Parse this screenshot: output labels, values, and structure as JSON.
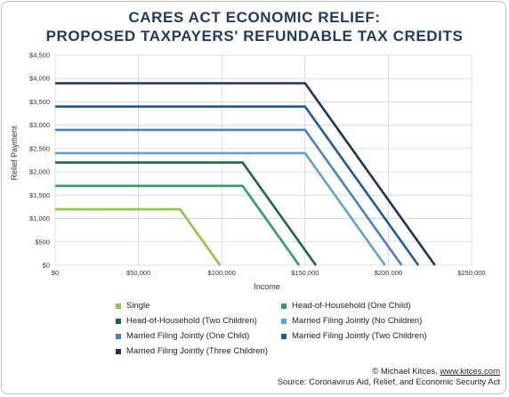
{
  "title_line1": "CARES ACT ECONOMIC RELIEF:",
  "title_line2": "PROPOSED TAXPAYERS' REFUNDABLE TAX CREDITS",
  "footer": {
    "credit_prefix": "© Michael Kitces, ",
    "credit_link": "www.kitces.com",
    "source": "Source: Coronavirus Aid, Relief, and Economic Security Act"
  },
  "chart_data": {
    "type": "line",
    "xlabel": "Income",
    "ylabel": "Relief Payment",
    "xlim": [
      0,
      250000
    ],
    "ylim": [
      0,
      4500
    ],
    "grid": true,
    "legend_position": "bottom",
    "x_ticks": [
      0,
      50000,
      100000,
      150000,
      200000,
      250000
    ],
    "x_tick_labels": [
      "$0",
      "$50,000",
      "$100,000",
      "$150,000",
      "$200,000",
      "$250,000"
    ],
    "y_ticks": [
      0,
      500,
      1000,
      1500,
      2000,
      2500,
      3000,
      3500,
      4000,
      4500
    ],
    "y_tick_labels": [
      "$0",
      "$500",
      "$1,000",
      "$1,500",
      "$2,000",
      "$2,500",
      "$3,000",
      "$3,500",
      "$4,000",
      "$4,500"
    ],
    "series": [
      {
        "name": "Single",
        "color": "#8dc63f",
        "x": [
          0,
          75000,
          99000
        ],
        "y": [
          1200,
          1200,
          0
        ]
      },
      {
        "name": "Head-of-Household (One Child)",
        "color": "#2aa25c",
        "x": [
          0,
          112500,
          146500
        ],
        "y": [
          1700,
          1700,
          0
        ]
      },
      {
        "name": "Head-of-Household (Two Children)",
        "color": "#1a6b35",
        "x": [
          0,
          112500,
          156500
        ],
        "y": [
          2200,
          2200,
          0
        ]
      },
      {
        "name": "Married Filing Jointly (No Children)",
        "color": "#5ba3d9",
        "x": [
          0,
          150000,
          198000
        ],
        "y": [
          2400,
          2400,
          0
        ]
      },
      {
        "name": "Married Filing Jointly (One Child)",
        "color": "#4a7fc1",
        "x": [
          0,
          150000,
          208000
        ],
        "y": [
          2900,
          2900,
          0
        ]
      },
      {
        "name": "Married Filing Jointly (Two Children)",
        "color": "#1d5a9a",
        "x": [
          0,
          150000,
          218000
        ],
        "y": [
          3400,
          3400,
          0
        ]
      },
      {
        "name": "Married Filing Jointly (Three Children)",
        "color": "#1f3358",
        "x": [
          0,
          150000,
          228000
        ],
        "y": [
          3900,
          3900,
          0
        ]
      }
    ]
  }
}
